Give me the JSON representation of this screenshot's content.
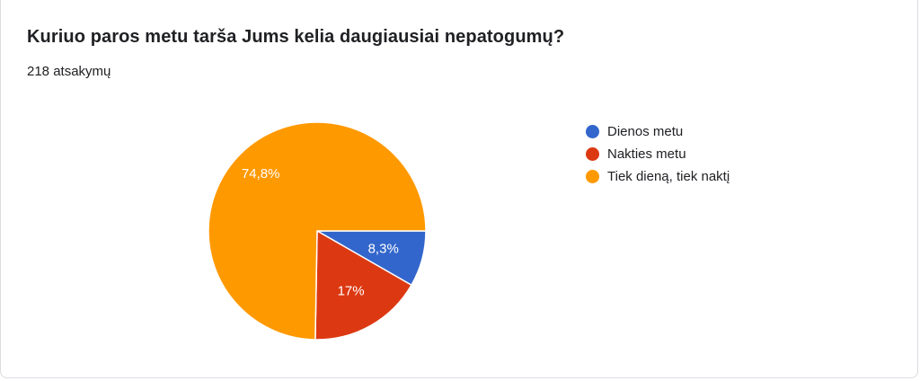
{
  "question": {
    "title": "Kuriuo paros metu tarša Jums kelia daugiausiai nepatogumų?",
    "responses": "218 atsakymų"
  },
  "chart_data": {
    "type": "pie",
    "title": "Kuriuo paros metu tarša Jums kelia daugiausiai nepatogumų?",
    "categories": [
      "Dienos metu",
      "Nakties metu",
      "Tiek dieną, tiek naktį"
    ],
    "values": [
      8.3,
      17,
      74.8
    ],
    "value_labels": [
      "8,3%",
      "17%",
      "74,8%"
    ],
    "colors": [
      "#3366cc",
      "#dc3912",
      "#ff9900"
    ],
    "start": "3 o'clock, clockwise",
    "legend_position": "right"
  }
}
